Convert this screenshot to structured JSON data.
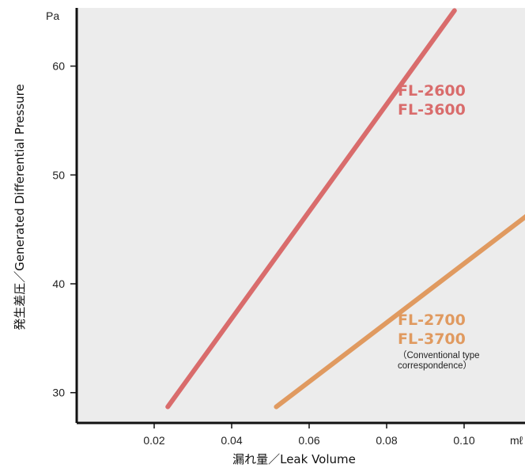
{
  "chart_data": {
    "type": "line",
    "title": "",
    "xlabel": "漏れ量／Leak Volume",
    "ylabel": "発生差圧／Generated Differential Pressure",
    "x_unit": "mℓ",
    "y_unit": "Pa",
    "xlim": [
      0.0,
      0.12
    ],
    "ylim": [
      27.0,
      66.0
    ],
    "x_ticks": [
      {
        "value": 0.02,
        "label": "0.02"
      },
      {
        "value": 0.04,
        "label": "0.04"
      },
      {
        "value": 0.06,
        "label": "0.06"
      },
      {
        "value": 0.08,
        "label": "0.08"
      },
      {
        "value": 0.1,
        "label": "0.10"
      }
    ],
    "y_ticks": [
      {
        "value": 30,
        "label": "30"
      },
      {
        "value": 40,
        "label": "40"
      },
      {
        "value": 50,
        "label": "50"
      },
      {
        "value": 60,
        "label": "60"
      }
    ],
    "grid": false,
    "series": [
      {
        "name": "FL-2600 / FL-3600",
        "label_lines": [
          "FL-2600",
          "FL-3600"
        ],
        "color": "#d96c6c",
        "points": [
          [
            0.0235,
            28.7
          ],
          [
            0.0975,
            65.1
          ]
        ]
      },
      {
        "name": "FL-2700 / FL-3700",
        "label_lines": [
          "FL-2700",
          "FL-3700"
        ],
        "note": [
          "（Conventional type",
          "correspondence）"
        ],
        "color": "#e09a60",
        "points": [
          [
            0.0515,
            28.7
          ],
          [
            0.1215,
            47.7
          ]
        ]
      }
    ]
  }
}
